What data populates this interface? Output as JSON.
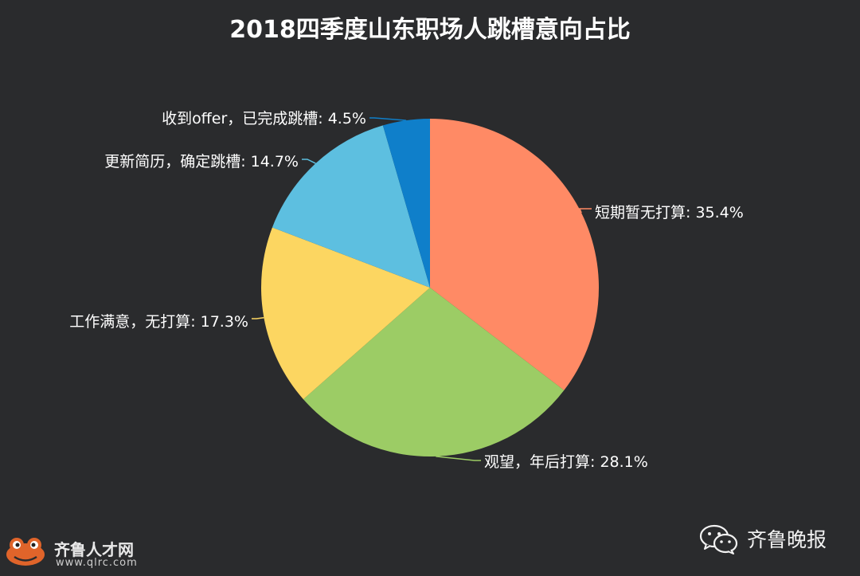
{
  "chart_data": {
    "type": "pie",
    "title": "2018四季度山东职场人跳槽意向占比",
    "start": "12 o'clock",
    "direction": "clockwise",
    "slices": [
      {
        "label": "短期暂无打算: 35.4%",
        "value": 35.4,
        "color": "#ff8a65"
      },
      {
        "label": "观望，年后打算: 28.1%",
        "value": 28.1,
        "color": "#9ccc65"
      },
      {
        "label": "工作满意，无打算: 17.3%",
        "value": 17.3,
        "color": "#fcd661"
      },
      {
        "label": "更新简历，确定跳槽: 14.7%",
        "value": 14.7,
        "color": "#5dbfe0"
      },
      {
        "label": "收到offer，已完成跳槽: 4.5%",
        "value": 4.5,
        "color": "#0f7fca"
      }
    ]
  },
  "watermarks": {
    "left_name": "齐鲁人才网",
    "left_url": "www.qlrc.com",
    "right_name": "齐鲁晚报"
  }
}
